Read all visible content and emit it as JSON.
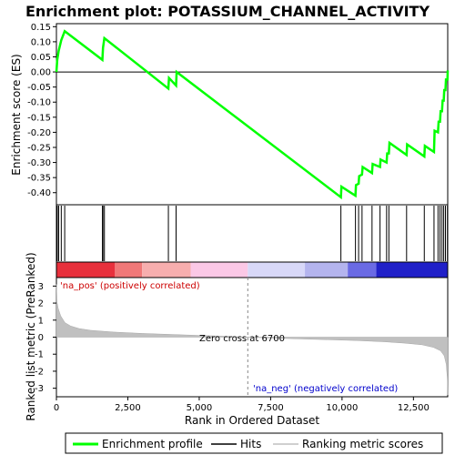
{
  "chart_data": {
    "type": "line",
    "title": "Enrichment plot: POTASSIUM_CHANNEL_ACTIVITY",
    "x_range": [
      0,
      13700
    ],
    "x_ticks": [
      0,
      2500,
      5000,
      7500,
      10000,
      12500
    ],
    "x_tick_labels": [
      "0",
      "2,500",
      "5,000",
      "7,500",
      "10,000",
      "12,500"
    ],
    "xlabel": "Rank in Ordered Dataset",
    "es_panel": {
      "ylabel": "Enrichment score (ES)",
      "ylim": [
        -0.44,
        0.16
      ],
      "yticks": [
        0.15,
        0.1,
        0.05,
        0.0,
        -0.05,
        -0.1,
        -0.15,
        -0.2,
        -0.25,
        -0.3,
        -0.35,
        -0.4
      ],
      "ytick_labels": [
        "0.15",
        "0.10",
        "0.05",
        "0.00",
        "-0.05",
        "-0.10",
        "-0.15",
        "-0.20",
        "-0.25",
        "-0.30",
        "-0.35",
        "-0.40"
      ],
      "color": "#00ff00",
      "series_name": "Enrichment profile",
      "points": [
        [
          0,
          0.0
        ],
        [
          30,
          0.04
        ],
        [
          80,
          0.07
        ],
        [
          170,
          0.105
        ],
        [
          290,
          0.135
        ],
        [
          1610,
          0.04
        ],
        [
          1630,
          0.08
        ],
        [
          1680,
          0.112
        ],
        [
          3920,
          -0.055
        ],
        [
          3940,
          -0.02
        ],
        [
          4190,
          -0.045
        ],
        [
          4210,
          0.0
        ],
        [
          9960,
          -0.415
        ],
        [
          9980,
          -0.38
        ],
        [
          10470,
          -0.41
        ],
        [
          10490,
          -0.375
        ],
        [
          10580,
          -0.37
        ],
        [
          10600,
          -0.345
        ],
        [
          10700,
          -0.34
        ],
        [
          10720,
          -0.315
        ],
        [
          11050,
          -0.335
        ],
        [
          11070,
          -0.305
        ],
        [
          11330,
          -0.315
        ],
        [
          11350,
          -0.29
        ],
        [
          11560,
          -0.3
        ],
        [
          11580,
          -0.27
        ],
        [
          11640,
          -0.27
        ],
        [
          11660,
          -0.235
        ],
        [
          12260,
          -0.275
        ],
        [
          12280,
          -0.24
        ],
        [
          12880,
          -0.28
        ],
        [
          12900,
          -0.245
        ],
        [
          13220,
          -0.265
        ],
        [
          13240,
          -0.195
        ],
        [
          13360,
          -0.2
        ],
        [
          13380,
          -0.165
        ],
        [
          13430,
          -0.165
        ],
        [
          13450,
          -0.13
        ],
        [
          13500,
          -0.13
        ],
        [
          13520,
          -0.095
        ],
        [
          13560,
          -0.095
        ],
        [
          13580,
          -0.06
        ],
        [
          13620,
          -0.06
        ],
        [
          13640,
          -0.025
        ],
        [
          13690,
          -0.025
        ],
        [
          13700,
          0.005
        ]
      ]
    },
    "hits": [
      30,
      80,
      170,
      290,
      1610,
      1630,
      1680,
      3920,
      4190,
      9960,
      10470,
      10580,
      10700,
      11050,
      11330,
      11560,
      11640,
      12260,
      12880,
      13220,
      13360,
      13430,
      13500,
      13560,
      13620,
      13690
    ],
    "heatbar_colors": [
      "#e8303c",
      "#f07878",
      "#f7aeae",
      "#fbc8e6",
      "#d8d8f8",
      "#b4b4ee",
      "#6a6ae4",
      "#2020c8"
    ],
    "heatbar_bounds": [
      0,
      2050,
      3000,
      4700,
      6700,
      8700,
      10200,
      11200,
      13700
    ],
    "metric_panel": {
      "ylabel": "Ranked list metric (PreRanked)",
      "ylim": [
        -3.5,
        3.5
      ],
      "yticks": [
        3,
        2,
        1,
        0,
        -1,
        -2,
        -3
      ],
      "ytick_labels": [
        "3",
        "2",
        "1",
        "0",
        "-1",
        "-2",
        "-3"
      ],
      "color": "#c0c0c0",
      "series_name": "Ranking metric scores",
      "points": [
        [
          0,
          3.1
        ],
        [
          20,
          2.1
        ],
        [
          60,
          1.7
        ],
        [
          150,
          1.25
        ],
        [
          300,
          0.85
        ],
        [
          500,
          0.65
        ],
        [
          800,
          0.5
        ],
        [
          1200,
          0.4
        ],
        [
          2000,
          0.3
        ],
        [
          3000,
          0.22
        ],
        [
          4000,
          0.16
        ],
        [
          5000,
          0.1
        ],
        [
          6000,
          0.05
        ],
        [
          6700,
          0.0
        ],
        [
          7500,
          -0.05
        ],
        [
          8500,
          -0.1
        ],
        [
          9500,
          -0.15
        ],
        [
          10500,
          -0.2
        ],
        [
          11500,
          -0.27
        ],
        [
          12200,
          -0.35
        ],
        [
          12800,
          -0.45
        ],
        [
          13200,
          -0.6
        ],
        [
          13450,
          -0.8
        ],
        [
          13580,
          -1.1
        ],
        [
          13650,
          -1.6
        ],
        [
          13690,
          -2.5
        ],
        [
          13700,
          -3.4
        ]
      ],
      "zero_cross": 6700,
      "zero_cross_label": "Zero cross at 6700",
      "pos_label": "'na_pos' (positively correlated)",
      "neg_label": "'na_neg' (negatively correlated)",
      "pos_color": "#cc0000",
      "neg_color": "#0000cc"
    },
    "legend": {
      "placement": "bottom",
      "entries": [
        {
          "label": "Enrichment profile",
          "color": "#00ff00"
        },
        {
          "label": "Hits",
          "color": "#000000"
        },
        {
          "label": "Ranking metric scores",
          "color": "#c0c0c0"
        }
      ]
    }
  }
}
